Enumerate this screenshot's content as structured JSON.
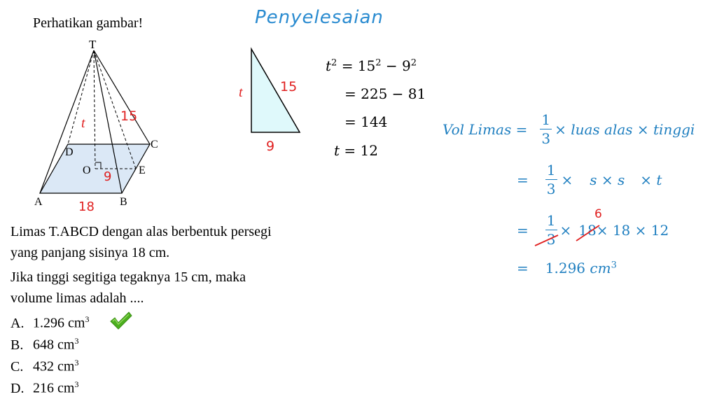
{
  "question": {
    "instruction": "Perhatikan gambar!",
    "lines": [
      "Limas T.ABCD dengan alas berbentuk persegi",
      "yang panjang sisinya 18 cm.",
      "Jika tinggi segitiga tegaknya 15 cm, maka",
      "volume limas adalah ...."
    ],
    "options": [
      {
        "letter": "A.",
        "value": "1.296 cm",
        "sup": "3",
        "correct": true
      },
      {
        "letter": "B.",
        "value": "648 cm",
        "sup": "3",
        "correct": false
      },
      {
        "letter": "C.",
        "value": "432 cm",
        "sup": "3",
        "correct": false
      },
      {
        "letter": "D.",
        "value": "216 cm",
        "sup": "3",
        "correct": false
      }
    ]
  },
  "pyramid": {
    "vertices": {
      "T": "T",
      "A": "A",
      "B": "B",
      "C": "C",
      "D": "D",
      "O": "O",
      "E": "E"
    },
    "labels": {
      "t": "t",
      "slant": "15",
      "half_base": "9",
      "base": "18"
    }
  },
  "solution": {
    "heading": "Penyelesaian",
    "triangle": {
      "t": "t",
      "hyp": "15",
      "base": "9",
      "fill": "#dff9fb"
    },
    "pythagoras": {
      "l1_lhs": "t",
      "l1_rhs": "= 15",
      "l1_rhs_sup": "2",
      "l1_minus": " − 9",
      "l1_minus_sup": "2",
      "l2": "= 225 − 81",
      "l3": "= 144",
      "l4": "t = 12"
    },
    "volume": {
      "lhs": "Vol Limas =",
      "one": "1",
      "three": "3",
      "l1_rest": "× luas alas × tinggi",
      "eq": "=",
      "l2_rest_a": "×",
      "l2_rest_b": "s × s",
      "l2_rest_c": "× t",
      "l3_eighteen_struck": "18",
      "l3_six": "6",
      "l3_rest": "× 18  × 12",
      "l3_times": "×",
      "l4_value": "1.296 ",
      "l4_unit": "cm",
      "l4_sup": "3"
    }
  },
  "colors": {
    "red": "#e02020",
    "blue": "#1f7fc0",
    "check": "#4caf1f",
    "base_fill": "#dbe8f6"
  }
}
